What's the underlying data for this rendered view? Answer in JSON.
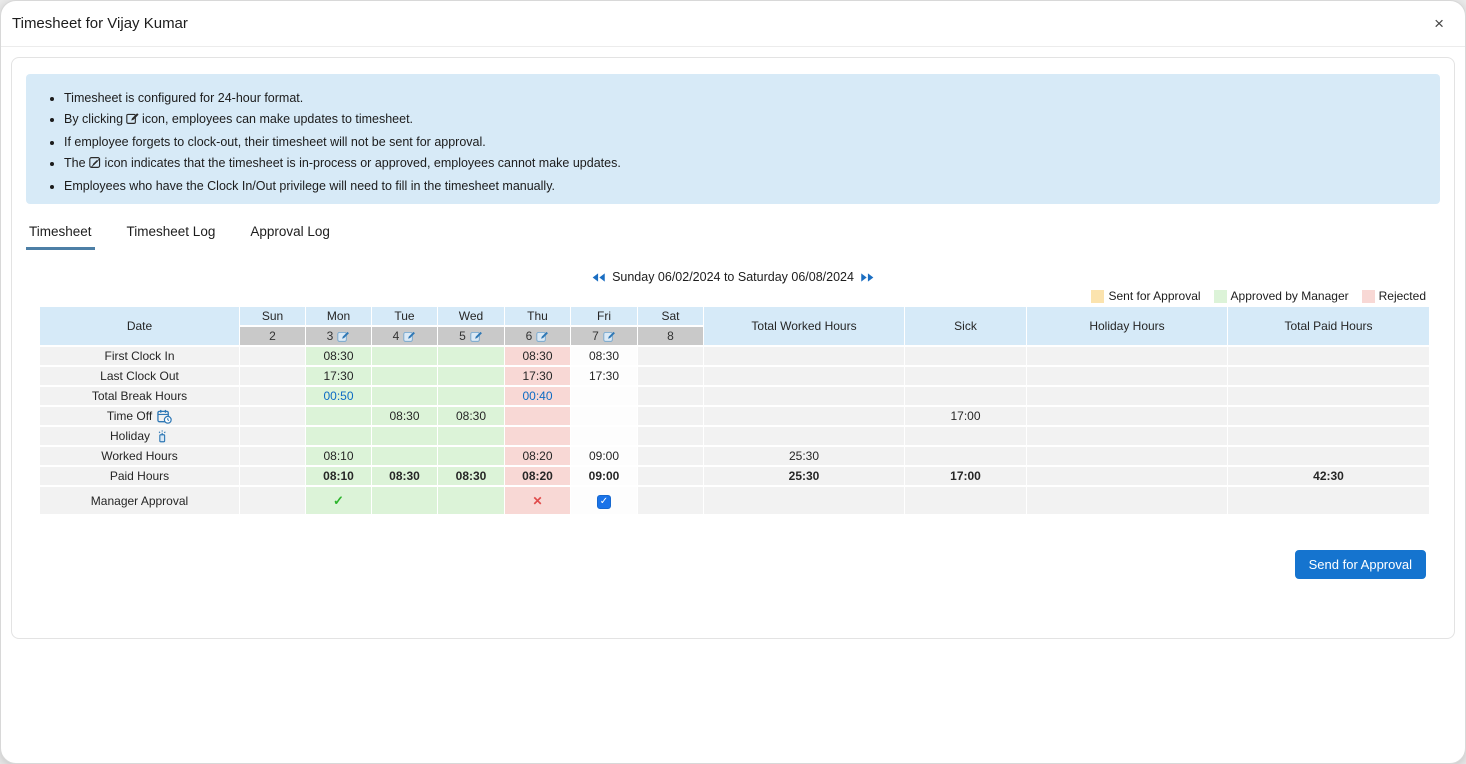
{
  "dialog": {
    "title": "Timesheet for Vijay Kumar",
    "close_icon": "×"
  },
  "info_notes": {
    "items": [
      {
        "pre": "Timesheet is configured for 24-hour format.",
        "icon": null,
        "post": ""
      },
      {
        "pre": "By clicking",
        "icon": "edit-icon",
        "post": "icon, employees can make updates to timesheet."
      },
      {
        "pre": "If employee forgets to clock-out, their timesheet will not be sent for approval.",
        "icon": null,
        "post": ""
      },
      {
        "pre": "The",
        "icon": "edit-disabled-icon",
        "post": "icon indicates that the timesheet is in-process or approved, employees cannot make updates."
      },
      {
        "pre": "Employees who have the Clock In/Out privilege will need to fill in the timesheet manually.",
        "icon": null,
        "post": ""
      }
    ]
  },
  "tabs": [
    {
      "label": "Timesheet",
      "active": true
    },
    {
      "label": "Timesheet Log",
      "active": false
    },
    {
      "label": "Approval Log",
      "active": false
    }
  ],
  "week_nav": {
    "label": "Sunday 06/02/2024 to Saturday 06/08/2024",
    "prev_icon": "double-left-arrow-icon",
    "next_icon": "double-right-arrow-icon"
  },
  "legend": [
    {
      "label": "Sent for Approval",
      "color": "#fbe3ae"
    },
    {
      "label": "Approved by Manager",
      "color": "#dcf3d8"
    },
    {
      "label": "Rejected",
      "color": "#f8d8d5"
    }
  ],
  "timesheet_table": {
    "date_header": "Date",
    "day_names": [
      "Sun",
      "Mon",
      "Tue",
      "Wed",
      "Thu",
      "Fri",
      "Sat"
    ],
    "day_dates": [
      {
        "num": "2",
        "editable": false
      },
      {
        "num": "3",
        "editable": true
      },
      {
        "num": "4",
        "editable": true
      },
      {
        "num": "5",
        "editable": true
      },
      {
        "num": "6",
        "editable": true
      },
      {
        "num": "7",
        "editable": true
      },
      {
        "num": "8",
        "editable": false
      }
    ],
    "day_status": [
      "none",
      "approved",
      "approved",
      "approved",
      "rejected",
      "open",
      "none"
    ],
    "summary_headers": [
      "Total Worked Hours",
      "Sick",
      "Holiday Hours",
      "Total Paid Hours"
    ],
    "rows": [
      {
        "label": "First Clock In",
        "icon": null,
        "bold": false,
        "days": [
          "",
          "08:30",
          "",
          "",
          "08:30",
          "08:30",
          ""
        ],
        "totals": [
          "",
          "",
          "",
          ""
        ]
      },
      {
        "label": "Last Clock Out",
        "icon": null,
        "bold": false,
        "days": [
          "",
          "17:30",
          "",
          "",
          "17:30",
          "17:30",
          ""
        ],
        "totals": [
          "",
          "",
          "",
          ""
        ]
      },
      {
        "label": "Total Break Hours",
        "icon": null,
        "bold": false,
        "link_days": [
          1,
          4
        ],
        "days": [
          "",
          "00:50",
          "",
          "",
          "00:40",
          "",
          ""
        ],
        "totals": [
          "",
          "",
          "",
          ""
        ]
      },
      {
        "label": "Time Off",
        "icon": "timeoff-calendar-clock-icon",
        "bold": false,
        "days": [
          "",
          "",
          "08:30",
          "08:30",
          "",
          "",
          ""
        ],
        "totals": [
          "",
          "17:00",
          "",
          ""
        ]
      },
      {
        "label": "Holiday",
        "icon": "holiday-firecracker-icon",
        "bold": false,
        "days": [
          "",
          "",
          "",
          "",
          "",
          "",
          ""
        ],
        "totals": [
          "",
          "",
          "",
          ""
        ]
      },
      {
        "label": "Worked Hours",
        "icon": null,
        "bold": false,
        "days": [
          "",
          "08:10",
          "",
          "",
          "08:20",
          "09:00",
          ""
        ],
        "totals": [
          "25:30",
          "",
          "",
          ""
        ]
      },
      {
        "label": "Paid Hours",
        "icon": null,
        "bold": true,
        "days": [
          "",
          "08:10",
          "08:30",
          "08:30",
          "08:20",
          "09:00",
          ""
        ],
        "totals": [
          "25:30",
          "17:00",
          "",
          "42:30"
        ]
      },
      {
        "label": "Manager Approval",
        "icon": null,
        "bold": false,
        "approval_row": true,
        "days": [
          "",
          "check",
          "",
          "",
          "cross",
          "checkbox-checked",
          ""
        ],
        "totals": [
          "",
          "",
          "",
          ""
        ]
      }
    ]
  },
  "actions": {
    "send_for_approval": "Send for Approval"
  },
  "colors": {
    "header_blue": "#d6eaf8",
    "date_row_gray": "#c9c9c9",
    "cell_gray": "#f2f2f2",
    "approved_green": "#dcf3d8",
    "rejected_pink": "#f8d8d5",
    "sent_for_approval_yellow": "#fbe3ae",
    "info_box_blue": "#d7eaf7",
    "tab_underline": "#4d7fa6",
    "primary_button": "#1574cf",
    "link_blue": "#0d6bc4",
    "check_green": "#2db52d",
    "cross_red": "#e04b4b",
    "checkbox_blue": "#1a73e8",
    "nav_arrow_blue": "#1b6ec2"
  }
}
